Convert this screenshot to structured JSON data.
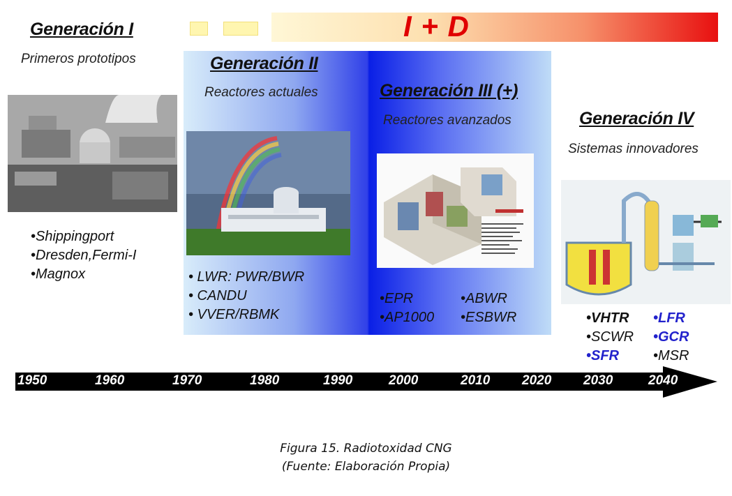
{
  "banner": {
    "label": "I + D"
  },
  "generations": [
    {
      "title": "Generación I",
      "subtitle": "Primeros prototipos",
      "items": [
        "•Shippingport",
        "•Dresden,Fermi-I",
        "•Magnox"
      ]
    },
    {
      "title": "Generación II",
      "subtitle": "Reactores actuales",
      "items": [
        "• LWR: PWR/BWR",
        "• CANDU",
        "• VVER/RBMK"
      ]
    },
    {
      "title": "Generación III (+)",
      "subtitle": "Reactores avanzados",
      "items_left": [
        "•EPR",
        "•AP1000"
      ],
      "items_right": [
        "•ABWR",
        "•ESBWR"
      ]
    },
    {
      "title": "Generación IV",
      "subtitle": "Sistemas innovadores",
      "items_left": [
        "•VHTR",
        "•SCWR",
        "•SFR"
      ],
      "items_right": [
        "•LFR",
        "•GCR",
        "•MSR"
      ]
    }
  ],
  "timeline": {
    "years": [
      "1950",
      "1960",
      "1970",
      "1980",
      "1990",
      "2000",
      "2010",
      "2020",
      "2030",
      "2040"
    ]
  },
  "caption": {
    "line1": "Figura 15. Radiotoxidad CNG",
    "line2": "(Fuente: Elaboración Propia)"
  }
}
